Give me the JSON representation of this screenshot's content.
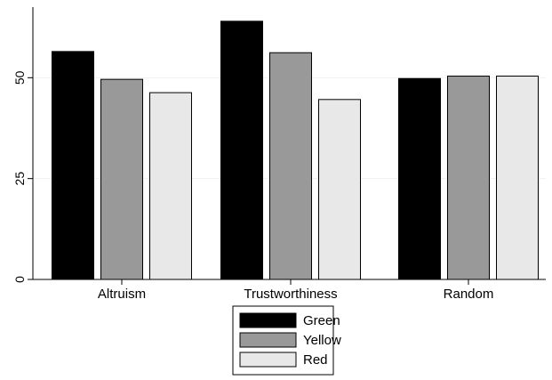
{
  "chart_data": {
    "type": "bar",
    "title": "",
    "xlabel": "",
    "ylabel": "",
    "categories": [
      "Altruism",
      "Trustworthiness",
      "Random"
    ],
    "series": [
      {
        "name": "Green",
        "values": [
          56.5,
          64.0,
          49.8
        ],
        "color": "#000000"
      },
      {
        "name": "Yellow",
        "values": [
          49.6,
          56.2,
          50.4
        ],
        "color": "#999999"
      },
      {
        "name": "Red",
        "values": [
          46.3,
          44.6,
          50.4
        ],
        "color": "#e8e8e8"
      }
    ],
    "yticks": [
      0,
      25,
      50
    ],
    "ylim": [
      0,
      67.5
    ],
    "grid": true,
    "legend_position": "bottom"
  }
}
